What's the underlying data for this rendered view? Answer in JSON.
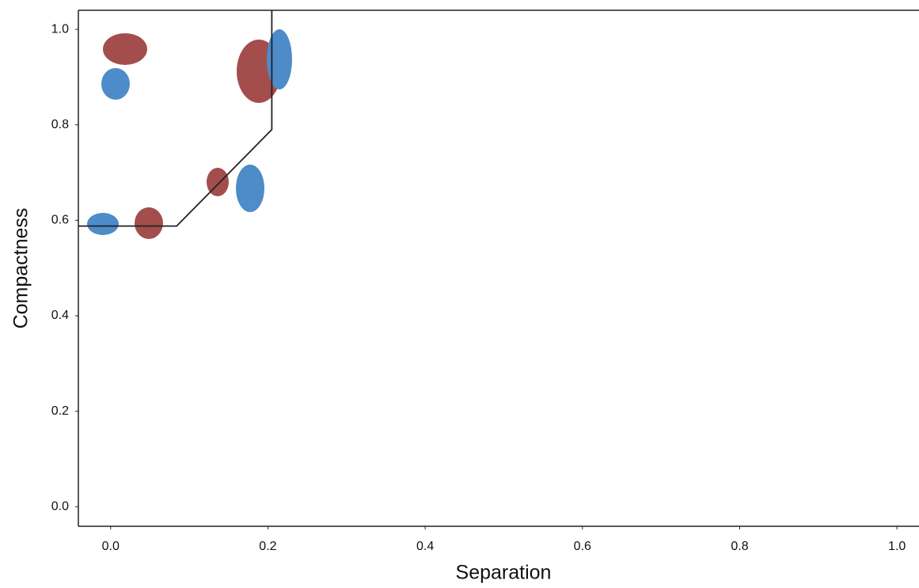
{
  "chart_data": {
    "type": "line",
    "x_label": "Separation",
    "y_label": "Compactness",
    "xlim": [
      -0.041,
      1.028
    ],
    "ylim": [
      -0.041,
      1.04
    ],
    "xticks": [
      {
        "value": 0,
        "label": "0.0"
      },
      0.2,
      0.4,
      0.6,
      0.8,
      {
        "value": 1,
        "label": "1.0"
      }
    ],
    "yticks": [
      {
        "value": 0,
        "label": "0.0"
      },
      0.2,
      0.4,
      0.6,
      0.8,
      {
        "value": 1,
        "label": "1.0"
      }
    ],
    "x": [
      -0.041,
      0.084,
      0.205,
      0.205
    ],
    "values": [
      0.588,
      0.588,
      0.79,
      1.04
    ],
    "color": "#222222"
  }
}
